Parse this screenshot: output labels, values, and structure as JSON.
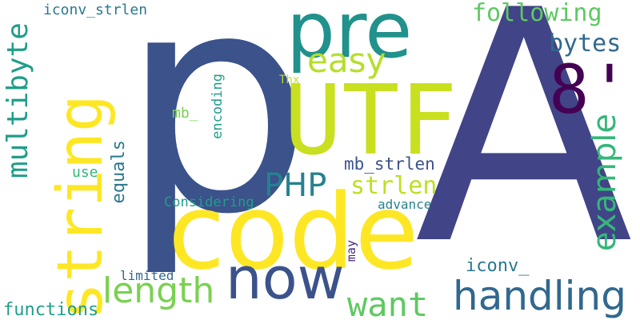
{
  "words": {
    "p": {
      "text": "p",
      "color": "#3b528b"
    },
    "A_tilde": {
      "text": "Ã",
      "color": "#414487"
    },
    "code": {
      "text": "code",
      "color": "#fde725"
    },
    "UTF": {
      "text": "UTF",
      "color": "#c8e020"
    },
    "string": {
      "text": "string",
      "color": "#fde725"
    },
    "pre": {
      "text": "pre",
      "color": "#21918c"
    },
    "eight_quote": {
      "text": "8'",
      "color": "#440154"
    },
    "now": {
      "text": "now",
      "color": "#3b528b"
    },
    "handling": {
      "text": "handling",
      "color": "#31688e"
    },
    "want": {
      "text": "want",
      "color": "#5ec962"
    },
    "length": {
      "text": "length",
      "color": "#7ad151"
    },
    "example": {
      "text": "example",
      "color": "#35b779"
    },
    "easy": {
      "text": "easy",
      "color": "#b5de2b"
    },
    "multibyte": {
      "text": "multibyte",
      "color": "#1f9e89"
    },
    "following": {
      "text": "following",
      "color": "#5ec962"
    },
    "PHP": {
      "text": "PHP",
      "color": "#26828e"
    },
    "strlen": {
      "text": "strlen",
      "color": "#bddf26"
    },
    "bytes": {
      "text": "bytes",
      "color": "#31688e"
    },
    "iconv_strlen": {
      "text": "iconv_strlen",
      "color": "#2a788e"
    },
    "mb_strlen": {
      "text": "mb_strlen",
      "color": "#3b528b"
    },
    "equals": {
      "text": "equals",
      "color": "#2a788e"
    },
    "functions": {
      "text": "functions",
      "color": "#1f9e89"
    },
    "iconv_": {
      "text": "iconv_",
      "color": "#2a788e"
    },
    "Considering": {
      "text": "Considering",
      "color": "#1f9e89"
    },
    "mb_": {
      "text": "mb_",
      "color": "#7ad151"
    },
    "encoding": {
      "text": "encoding",
      "color": "#1f9e89"
    },
    "use": {
      "text": "use",
      "color": "#35b779"
    },
    "limited": {
      "text": "limited",
      "color": "#31688e"
    },
    "advance": {
      "text": "advance",
      "color": "#26828e"
    },
    "may": {
      "text": "may",
      "color": "#482878"
    },
    "Thx": {
      "text": "Thx",
      "color": "#bddf26"
    }
  }
}
